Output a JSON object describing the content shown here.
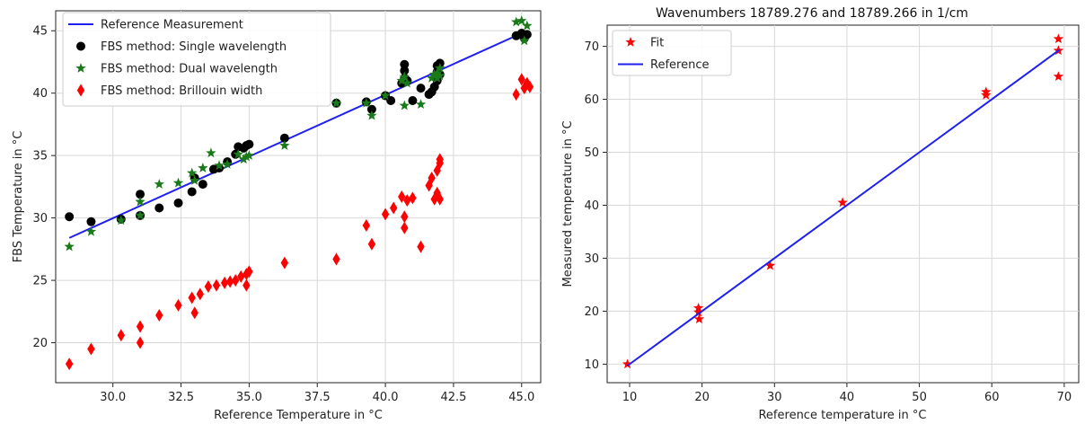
{
  "chart_data": [
    {
      "type": "scatter",
      "title": "",
      "xlabel": "Reference Temperature in °C",
      "ylabel": "FBS Temperature in °C",
      "xlim": [
        27.9,
        45.7
      ],
      "ylim": [
        16.8,
        46.6
      ],
      "xticks": [
        30.0,
        32.5,
        35.0,
        37.5,
        40.0,
        42.5,
        45.0
      ],
      "xtick_labels": [
        "30.0",
        "32.5",
        "35.0",
        "37.5",
        "40.0",
        "42.5",
        "45.0"
      ],
      "yticks": [
        20,
        25,
        30,
        35,
        40,
        45
      ],
      "ytick_labels": [
        "20",
        "25",
        "30",
        "35",
        "40",
        "45"
      ],
      "grid": true,
      "legend_position": "upper-left",
      "series": [
        {
          "name": "Reference Measurement",
          "kind": "line",
          "color": "#1f1fef",
          "points": [
            [
              28.4,
              28.4
            ],
            [
              45.2,
              45.0
            ]
          ]
        },
        {
          "name": "FBS method: Single wavelength",
          "kind": "marker",
          "marker": "circle",
          "color": "#000000",
          "points": [
            [
              28.4,
              30.1
            ],
            [
              29.2,
              29.7
            ],
            [
              30.3,
              29.9
            ],
            [
              31.0,
              30.2
            ],
            [
              31.0,
              31.9
            ],
            [
              31.7,
              30.8
            ],
            [
              32.4,
              31.2
            ],
            [
              32.9,
              32.1
            ],
            [
              33.0,
              33.2
            ],
            [
              33.3,
              32.7
            ],
            [
              33.7,
              33.9
            ],
            [
              33.9,
              34.0
            ],
            [
              34.2,
              34.5
            ],
            [
              34.5,
              35.1
            ],
            [
              34.6,
              35.7
            ],
            [
              34.8,
              35.6
            ],
            [
              34.9,
              35.8
            ],
            [
              35.0,
              35.9
            ],
            [
              36.3,
              36.4
            ],
            [
              38.2,
              39.2
            ],
            [
              39.3,
              39.3
            ],
            [
              39.5,
              38.7
            ],
            [
              40.0,
              39.8
            ],
            [
              40.2,
              39.4
            ],
            [
              40.6,
              40.8
            ],
            [
              40.7,
              41.2
            ],
            [
              40.7,
              41.8
            ],
            [
              40.7,
              42.3
            ],
            [
              40.8,
              41.0
            ],
            [
              41.0,
              39.4
            ],
            [
              41.3,
              40.4
            ],
            [
              41.6,
              39.9
            ],
            [
              41.7,
              40.1
            ],
            [
              41.8,
              40.5
            ],
            [
              41.9,
              41.0
            ],
            [
              41.9,
              41.7
            ],
            [
              41.9,
              42.2
            ],
            [
              42.0,
              42.4
            ],
            [
              42.0,
              41.5
            ],
            [
              44.8,
              44.6
            ],
            [
              45.0,
              44.8
            ],
            [
              45.1,
              44.4
            ],
            [
              45.2,
              44.7
            ]
          ]
        },
        {
          "name": "FBS method: Dual wavelength",
          "kind": "marker",
          "marker": "star",
          "color": "#1a7a1a",
          "points": [
            [
              28.4,
              27.7
            ],
            [
              29.2,
              28.9
            ],
            [
              30.3,
              29.8
            ],
            [
              31.0,
              31.3
            ],
            [
              31.0,
              30.2
            ],
            [
              31.7,
              32.7
            ],
            [
              32.4,
              32.8
            ],
            [
              32.9,
              33.6
            ],
            [
              33.0,
              33.0
            ],
            [
              33.3,
              34.0
            ],
            [
              33.6,
              35.2
            ],
            [
              33.9,
              34.2
            ],
            [
              34.2,
              34.3
            ],
            [
              34.6,
              35.1
            ],
            [
              34.8,
              34.7
            ],
            [
              34.9,
              34.9
            ],
            [
              35.0,
              35.0
            ],
            [
              36.3,
              35.8
            ],
            [
              38.2,
              39.2
            ],
            [
              39.3,
              39.2
            ],
            [
              39.5,
              38.2
            ],
            [
              40.0,
              39.8
            ],
            [
              40.6,
              41.0
            ],
            [
              40.7,
              41.3
            ],
            [
              40.7,
              39.0
            ],
            [
              40.8,
              40.8
            ],
            [
              41.3,
              39.1
            ],
            [
              41.7,
              41.2
            ],
            [
              41.8,
              41.5
            ],
            [
              41.9,
              41.6
            ],
            [
              41.9,
              41.2
            ],
            [
              42.0,
              41.4
            ],
            [
              42.0,
              42.0
            ],
            [
              44.8,
              45.7
            ],
            [
              45.0,
              45.8
            ],
            [
              45.1,
              44.2
            ],
            [
              45.2,
              45.4
            ]
          ]
        },
        {
          "name": "FBS method: Brillouin width",
          "kind": "marker",
          "marker": "thin-diamond",
          "color": "#ff0000",
          "points": [
            [
              28.4,
              18.3
            ],
            [
              29.2,
              19.5
            ],
            [
              30.3,
              20.6
            ],
            [
              31.0,
              20.0
            ],
            [
              31.0,
              21.3
            ],
            [
              31.7,
              22.2
            ],
            [
              32.4,
              23.0
            ],
            [
              32.9,
              23.6
            ],
            [
              33.0,
              22.4
            ],
            [
              33.2,
              23.9
            ],
            [
              33.5,
              24.5
            ],
            [
              33.8,
              24.6
            ],
            [
              34.1,
              24.8
            ],
            [
              34.3,
              24.9
            ],
            [
              34.5,
              25.0
            ],
            [
              34.7,
              25.3
            ],
            [
              34.9,
              24.6
            ],
            [
              34.9,
              25.5
            ],
            [
              35.0,
              25.7
            ],
            [
              36.3,
              26.4
            ],
            [
              38.2,
              26.7
            ],
            [
              39.3,
              29.4
            ],
            [
              39.5,
              27.9
            ],
            [
              40.0,
              30.3
            ],
            [
              40.3,
              30.8
            ],
            [
              40.6,
              31.7
            ],
            [
              40.7,
              30.1
            ],
            [
              40.7,
              29.2
            ],
            [
              40.8,
              31.4
            ],
            [
              41.0,
              31.6
            ],
            [
              41.3,
              27.7
            ],
            [
              41.6,
              32.6
            ],
            [
              41.7,
              33.2
            ],
            [
              41.8,
              31.5
            ],
            [
              41.9,
              33.8
            ],
            [
              41.9,
              32.0
            ],
            [
              42.0,
              34.4
            ],
            [
              42.0,
              31.5
            ],
            [
              42.0,
              34.7
            ],
            [
              44.8,
              39.9
            ],
            [
              45.0,
              41.1
            ],
            [
              45.1,
              40.4
            ],
            [
              45.2,
              40.8
            ],
            [
              45.3,
              40.5
            ]
          ]
        }
      ]
    },
    {
      "type": "scatter",
      "title": "Wavenumbers 18789.276 and 18789.266 in 1/cm",
      "xlabel": "Reference temperature in °C",
      "ylabel": "Measured temperature in °C",
      "xlim": [
        6.9,
        72.0
      ],
      "ylim": [
        6.5,
        74.0
      ],
      "xticks": [
        10,
        20,
        30,
        40,
        50,
        60,
        70
      ],
      "xtick_labels": [
        "10",
        "20",
        "30",
        "40",
        "50",
        "60",
        "70"
      ],
      "yticks": [
        10,
        20,
        30,
        40,
        50,
        60,
        70
      ],
      "ytick_labels": [
        "10",
        "20",
        "30",
        "40",
        "50",
        "60",
        "70"
      ],
      "grid": true,
      "legend_position": "upper-left",
      "series": [
        {
          "name": "Fit",
          "kind": "marker",
          "marker": "star",
          "color": "#ff0000",
          "points": [
            [
              9.7,
              10.0
            ],
            [
              19.5,
              20.6
            ],
            [
              19.5,
              19.8
            ],
            [
              19.6,
              18.5
            ],
            [
              29.4,
              28.6
            ],
            [
              39.4,
              40.5
            ],
            [
              59.2,
              60.8
            ],
            [
              59.2,
              61.4
            ],
            [
              69.2,
              71.4
            ],
            [
              69.2,
              69.2
            ],
            [
              69.2,
              64.3
            ]
          ]
        },
        {
          "name": "Reference",
          "kind": "line",
          "color": "#1f1fef",
          "points": [
            [
              9.7,
              9.7
            ],
            [
              69.3,
              69.3
            ]
          ]
        }
      ]
    }
  ]
}
